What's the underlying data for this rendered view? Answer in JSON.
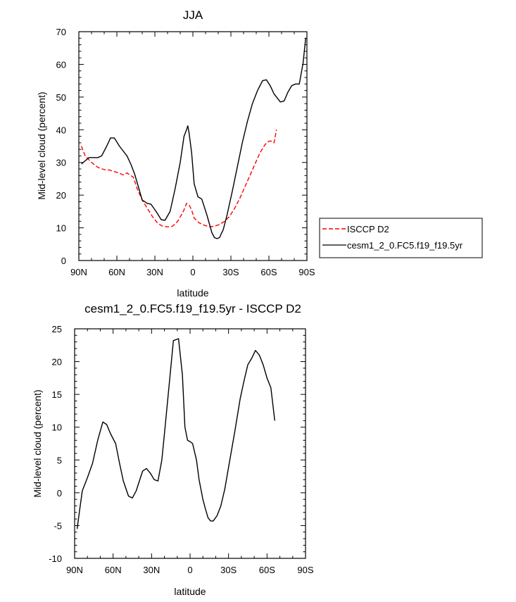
{
  "chart_data": [
    {
      "type": "line",
      "title": "JJA",
      "xlabel": "latitude",
      "ylabel": "Mid-level cloud (percent)",
      "xlim": [
        -90,
        90
      ],
      "ylim": [
        0,
        70
      ],
      "x_ticks": [
        -90,
        -60,
        -30,
        0,
        30,
        60,
        90
      ],
      "x_tick_labels": [
        "90N",
        "60N",
        "30N",
        "0",
        "30S",
        "60S",
        "90S"
      ],
      "y_ticks": [
        0,
        10,
        20,
        30,
        40,
        50,
        60,
        70
      ],
      "y_tick_labels": [
        "0",
        "10",
        "20",
        "30",
        "40",
        "50",
        "60",
        "70"
      ],
      "legend_position": "outside-right",
      "series": [
        {
          "name": "ISCCP D2",
          "color": "#ff0000",
          "dash": true,
          "x": [
            -88,
            -85,
            -80,
            -75,
            -70,
            -66,
            -62,
            -58,
            -55,
            -52,
            -50,
            -47,
            -44,
            -40,
            -36,
            -32,
            -28,
            -24,
            -20,
            -16,
            -12,
            -9,
            -7,
            -5,
            -3,
            -1,
            1,
            5,
            9,
            13,
            17,
            21,
            25,
            29,
            33,
            37,
            41,
            45,
            49,
            53,
            57,
            60,
            62,
            64,
            65,
            66
          ],
          "y": [
            35,
            32,
            30,
            28.5,
            27.8,
            27.7,
            27.2,
            26.7,
            26.2,
            26.8,
            26.2,
            25.5,
            22,
            18.5,
            16,
            13.5,
            11.5,
            10.5,
            10.3,
            10.5,
            12,
            14,
            15.5,
            17.5,
            17,
            15.5,
            13,
            11.5,
            10.8,
            10.3,
            10.5,
            11,
            12,
            13.5,
            16,
            19,
            22.5,
            26,
            29.5,
            33,
            35.5,
            36.5,
            36.5,
            36,
            38,
            40
          ]
        },
        {
          "name": "cesm1_2_0.FC5.f19_f19.5yr",
          "color": "#000000",
          "dash": false,
          "x": [
            -88,
            -85,
            -82,
            -78,
            -75,
            -72,
            -68,
            -65,
            -62,
            -58,
            -55,
            -52,
            -49,
            -46,
            -43,
            -40,
            -36,
            -33,
            -29,
            -25,
            -22,
            -18,
            -14,
            -10,
            -7,
            -5,
            -4,
            -3,
            -1,
            1,
            4,
            7,
            11,
            15,
            17,
            19,
            21,
            24,
            27,
            31,
            35,
            39,
            43,
            47,
            51,
            55,
            58,
            61,
            64,
            67,
            69,
            72,
            75,
            78,
            81,
            84,
            87,
            89
          ],
          "y": [
            29.5,
            30.5,
            31.5,
            31.5,
            31.5,
            32,
            35,
            37.5,
            37.5,
            35,
            33.5,
            32,
            29.5,
            26.5,
            22.5,
            18.5,
            17.5,
            17.2,
            15,
            12.5,
            12.3,
            15,
            22,
            30,
            38,
            40,
            41.2,
            39,
            33,
            23.5,
            19.5,
            18.8,
            14,
            8.5,
            7,
            6.7,
            7,
            9.5,
            14,
            21,
            28.5,
            36,
            42.5,
            48,
            52,
            55,
            55.3,
            53.5,
            51,
            49.5,
            48.5,
            48.8,
            51.5,
            53.5,
            54,
            54,
            60.5,
            68
          ]
        }
      ]
    },
    {
      "type": "line",
      "title": "cesm1_2_0.FC5.f19_f19.5yr - ISCCP D2",
      "xlabel": "latitude",
      "ylabel": "Mid-level cloud (percent)",
      "xlim": [
        -90,
        90
      ],
      "ylim": [
        -10,
        25
      ],
      "x_ticks": [
        -90,
        -60,
        -30,
        0,
        30,
        60,
        90
      ],
      "x_tick_labels": [
        "90N",
        "60N",
        "30N",
        "0",
        "30S",
        "60S",
        "90S"
      ],
      "y_ticks": [
        -10,
        -5,
        0,
        5,
        10,
        15,
        20,
        25
      ],
      "y_tick_labels": [
        "-10",
        "-5",
        "0",
        "5",
        "10",
        "15",
        "20",
        "25"
      ],
      "series": [
        {
          "color": "#000000",
          "dash": false,
          "x": [
            -88,
            -86,
            -84,
            -80,
            -76,
            -72,
            -68,
            -65,
            -62,
            -58,
            -55,
            -52,
            -48,
            -45,
            -42,
            -40,
            -37,
            -34,
            -31,
            -28,
            -25,
            -22,
            -20,
            -17,
            -13,
            -9,
            -6,
            -4,
            -2,
            0,
            2,
            5,
            7,
            10,
            12,
            14,
            16,
            18,
            21,
            24,
            27,
            31,
            35,
            39,
            42,
            45,
            48,
            51,
            54,
            57,
            60,
            63,
            66
          ],
          "y": [
            -5.5,
            -2.5,
            0.3,
            2.3,
            4.5,
            8,
            10.8,
            10.4,
            9,
            7.5,
            4.5,
            1.8,
            -0.5,
            -0.8,
            0.3,
            1.5,
            3.3,
            3.7,
            3,
            2,
            1.8,
            5,
            9,
            15,
            23.2,
            23.5,
            18,
            10,
            8,
            7.8,
            7.5,
            5,
            2,
            -1,
            -2.5,
            -3.8,
            -4.3,
            -4.3,
            -3.5,
            -2,
            0.5,
            5,
            9.5,
            14.3,
            17,
            19.5,
            20.5,
            21.7,
            21,
            19.5,
            17.5,
            16,
            11
          ]
        }
      ]
    }
  ]
}
